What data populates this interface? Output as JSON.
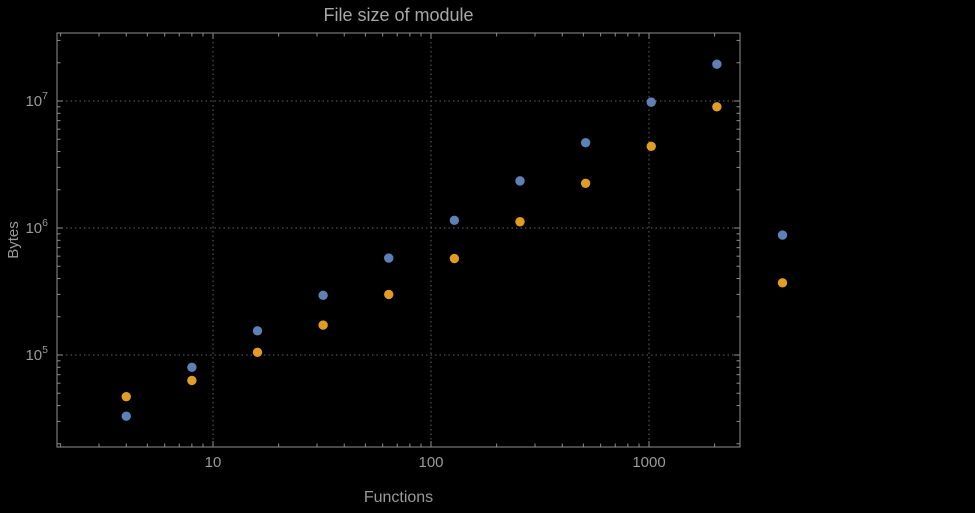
{
  "chart_data": {
    "type": "scatter",
    "title": "File size of module",
    "xlabel": "Functions",
    "ylabel": "Bytes",
    "x_scale": "log",
    "y_scale": "log",
    "x": [
      4,
      8,
      16,
      32,
      64,
      128,
      256,
      512,
      1024,
      2048,
      4096
    ],
    "series": [
      {
        "name": "series-1-blue",
        "color": "#5e81b5",
        "values": [
          33000,
          80000,
          155000,
          295000,
          580000,
          1150000,
          2350000,
          4700000,
          9800000,
          19500000,
          880000
        ]
      },
      {
        "name": "series-2-orange",
        "color": "#e19c24",
        "values": [
          47000,
          63000,
          105000,
          172000,
          300000,
          575000,
          1120000,
          2250000,
          4400000,
          9000000,
          370000
        ]
      }
    ],
    "x_ticks": [
      10,
      100,
      1000
    ],
    "x_tick_labels": [
      "10",
      "100",
      "1000"
    ],
    "y_ticks": [
      100000,
      1000000,
      10000000
    ],
    "y_tick_labels": [
      "10^5",
      "10^6",
      "10^7"
    ],
    "xlim": [
      1.9,
      2600
    ],
    "ylim": [
      19000,
      34000000
    ],
    "grid": "dotted",
    "legend": "none",
    "colors": {
      "background": "#000000",
      "frame": "#8f8f8f",
      "grid": "#5f5f5f",
      "text": "#9a9a9c",
      "title": "#a8a8aa"
    }
  }
}
